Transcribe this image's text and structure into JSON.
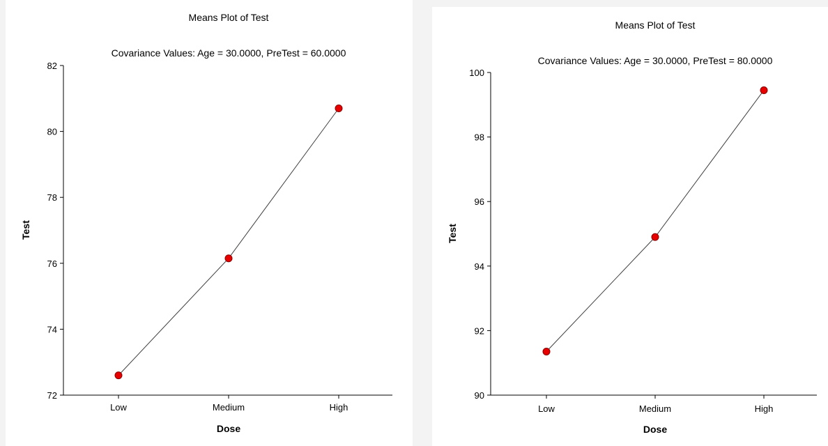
{
  "chart_data": [
    {
      "type": "line",
      "title": "Means Plot of Test",
      "subtitle": "Covariance Values: Age = 30.0000, PreTest = 60.0000",
      "xlabel": "Dose",
      "ylabel": "Test",
      "categories": [
        "Low",
        "Medium",
        "High"
      ],
      "values": [
        72.6,
        76.15,
        80.7
      ],
      "ylim": [
        72,
        82
      ],
      "yticks": [
        "72",
        "74",
        "76",
        "78",
        "80",
        "82"
      ],
      "grid": false,
      "line_color": "#404040",
      "marker_color": "#e60000"
    },
    {
      "type": "line",
      "title": "Means Plot of Test",
      "subtitle": "Covariance Values: Age = 30.0000, PreTest = 80.0000",
      "xlabel": "Dose",
      "ylabel": "Test",
      "categories": [
        "Low",
        "Medium",
        "High"
      ],
      "values": [
        91.35,
        94.9,
        99.45
      ],
      "ylim": [
        90,
        100
      ],
      "yticks": [
        "90",
        "92",
        "94",
        "96",
        "98",
        "100"
      ],
      "grid": false,
      "line_color": "#404040",
      "marker_color": "#e60000"
    }
  ]
}
